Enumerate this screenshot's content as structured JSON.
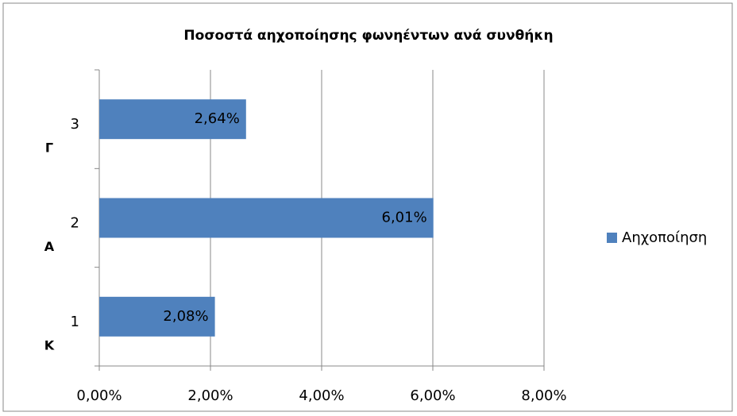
{
  "chart_data": {
    "type": "barh",
    "title": "Ποσοστά αηχοποίησης φωνηέντων ανά συνθήκη",
    "categories": [
      "1",
      "2",
      "3"
    ],
    "groups": [
      "Κ",
      "Α",
      "Γ"
    ],
    "series": [
      {
        "name": "Αηχοποίηση",
        "color": "#4f81bd",
        "values": [
          2.08,
          6.01,
          2.64
        ],
        "value_labels": [
          "2,08%",
          "6,01%",
          "2,64%"
        ]
      }
    ],
    "xlim": [
      0,
      8
    ],
    "xticks": [
      {
        "value": 0,
        "label": "0,00%"
      },
      {
        "value": 2,
        "label": "2,00%"
      },
      {
        "value": 4,
        "label": "4,00%"
      },
      {
        "value": 6,
        "label": "6,00%"
      },
      {
        "value": 8,
        "label": "8,00%"
      }
    ],
    "grid": true,
    "legend": "right"
  }
}
